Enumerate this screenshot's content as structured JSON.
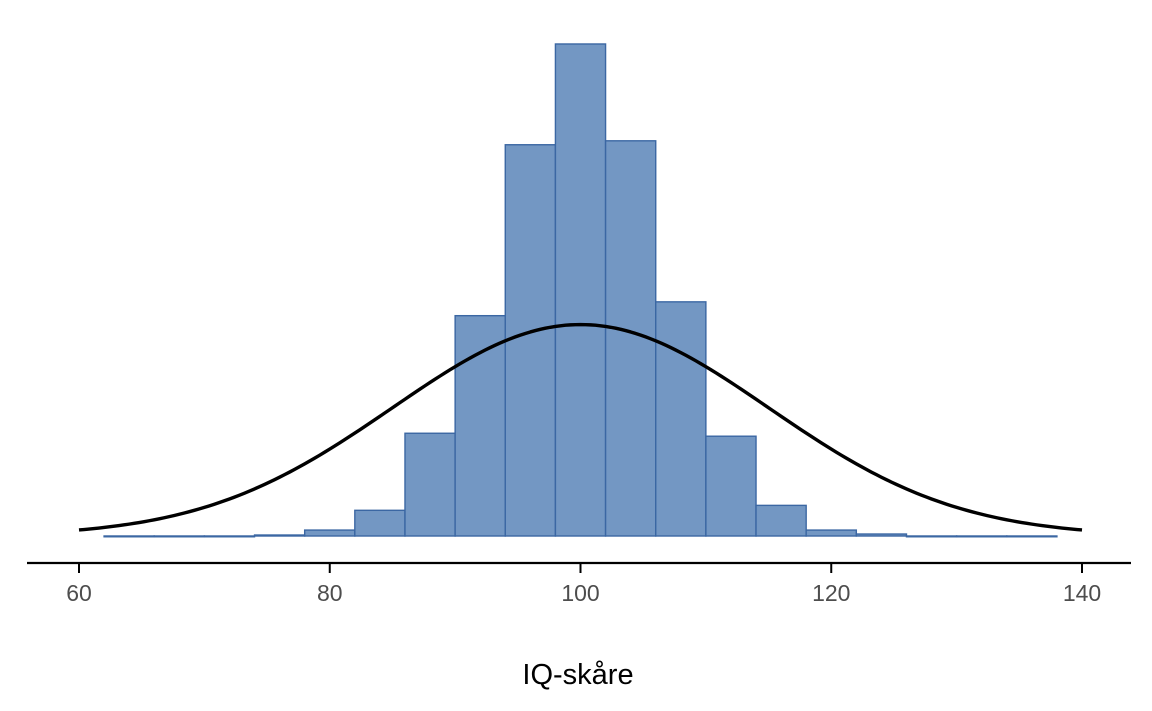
{
  "chart_data": {
    "type": "bar",
    "subtype": "histogram with normal density curve",
    "xlabel": "IQ-skåre",
    "ylabel": "",
    "xlim": [
      60,
      140
    ],
    "x_ticks": [
      60,
      80,
      100,
      120,
      140
    ],
    "y_axis_shown": false,
    "grid": false,
    "bin_width": 4,
    "bins": [
      {
        "start": 62,
        "end": 66,
        "count": 0.002
      },
      {
        "start": 66,
        "end": 70,
        "count": 0.002
      },
      {
        "start": 70,
        "end": 74,
        "count": 0.002
      },
      {
        "start": 74,
        "end": 78,
        "count": 0.1
      },
      {
        "start": 78,
        "end": 82,
        "count": 0.6
      },
      {
        "start": 82,
        "end": 86,
        "count": 2.6
      },
      {
        "start": 86,
        "end": 90,
        "count": 10.4
      },
      {
        "start": 90,
        "end": 94,
        "count": 22.3
      },
      {
        "start": 94,
        "end": 98,
        "count": 39.6
      },
      {
        "start": 98,
        "end": 102,
        "count": 49.8
      },
      {
        "start": 102,
        "end": 106,
        "count": 40.0
      },
      {
        "start": 106,
        "end": 110,
        "count": 23.7
      },
      {
        "start": 110,
        "end": 114,
        "count": 10.1
      },
      {
        "start": 114,
        "end": 118,
        "count": 3.1
      },
      {
        "start": 118,
        "end": 122,
        "count": 0.6
      },
      {
        "start": 122,
        "end": 126,
        "count": 0.2
      },
      {
        "start": 126,
        "end": 130,
        "count": 0.002
      },
      {
        "start": 130,
        "end": 134,
        "count": 0.002
      },
      {
        "start": 134,
        "end": 138,
        "count": 0.002
      }
    ],
    "curve": {
      "type": "normal",
      "mean": 100,
      "sd": 15,
      "peak_count": 21.4,
      "x_range": [
        60,
        140
      ]
    },
    "colors": {
      "bar_fill": "#7397C3",
      "bar_stroke": "#3B67A3",
      "curve": "#000000",
      "axis": "#000000",
      "tick_text": "#4d4d4d"
    }
  }
}
